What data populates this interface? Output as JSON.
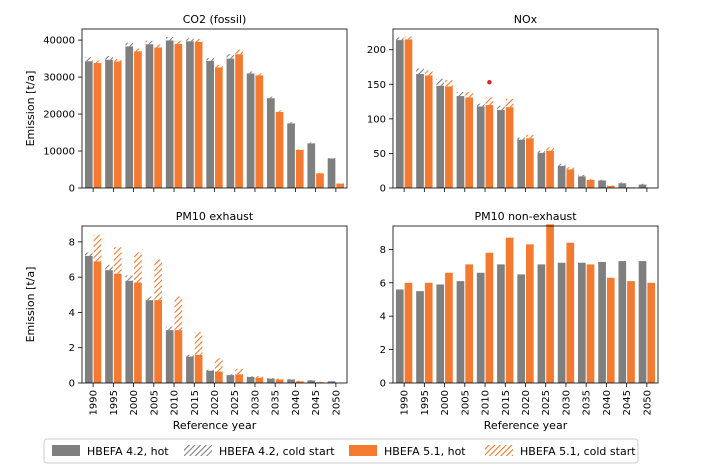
{
  "colors": {
    "hbefa42": "#7f7f7f",
    "hbefa51": "#f47a30",
    "outlier": "#d62728"
  },
  "legend": {
    "items": [
      {
        "label": "HBEFA 4.2, hot",
        "style": "solid-gray"
      },
      {
        "label": "HBEFA 4.2, cold start",
        "style": "hatch-gray"
      },
      {
        "label": "HBEFA 5.1, hot",
        "style": "solid-orange"
      },
      {
        "label": "HBEFA 5.1, cold start",
        "style": "hatch-orange"
      }
    ]
  },
  "chart_data": [
    {
      "type": "bar",
      "title": "CO2 (fossil)",
      "ylabel": "Emission [t/a]",
      "xlabel": "",
      "categories": [
        "1990",
        "1995",
        "2000",
        "2005",
        "2010",
        "2015",
        "2020",
        "2025",
        "2030",
        "2035",
        "2040",
        "2045",
        "2050"
      ],
      "ylim": [
        0,
        43000
      ],
      "yticks": [
        0,
        10000,
        20000,
        30000,
        40000
      ],
      "show_xticklabels": false,
      "series": [
        {
          "name": "HBEFA 4.2, hot",
          "values": [
            34300,
            34700,
            38300,
            38900,
            39900,
            39700,
            34400,
            35000,
            31000,
            24300,
            17500,
            12100,
            8000
          ]
        },
        {
          "name": "HBEFA 4.2, cold start",
          "values": [
            1100,
            1000,
            1000,
            900,
            900,
            800,
            700,
            1200,
            500,
            400,
            300,
            200,
            100
          ]
        },
        {
          "name": "HBEFA 5.1, hot",
          "values": [
            33800,
            34200,
            37000,
            38000,
            39000,
            39500,
            32600,
            36200,
            30500,
            20600,
            10300,
            4000,
            1200
          ]
        },
        {
          "name": "HBEFA 5.1, cold start",
          "values": [
            700,
            700,
            700,
            800,
            800,
            800,
            700,
            1200,
            500,
            400,
            200,
            100,
            50
          ]
        }
      ]
    },
    {
      "type": "bar",
      "title": "NOx",
      "ylabel": "",
      "xlabel": "",
      "categories": [
        "1990",
        "1995",
        "2000",
        "2005",
        "2010",
        "2015",
        "2020",
        "2025",
        "2030",
        "2035",
        "2040",
        "2045",
        "2050"
      ],
      "ylim": [
        0,
        230
      ],
      "yticks": [
        0,
        50,
        100,
        150,
        200
      ],
      "show_xticklabels": false,
      "series": [
        {
          "name": "HBEFA 4.2, hot",
          "values": [
            214,
            165,
            148,
            133,
            118,
            113,
            70,
            51,
            32,
            17,
            11,
            7,
            5
          ]
        },
        {
          "name": "HBEFA 4.2, cold start",
          "values": [
            4,
            8,
            10,
            6,
            4,
            6,
            3,
            3,
            3,
            2,
            1,
            1,
            1
          ]
        },
        {
          "name": "HBEFA 5.1, hot",
          "values": [
            215,
            163,
            147,
            131,
            120,
            117,
            72,
            54,
            27,
            12,
            3,
            1,
            0.5
          ]
        },
        {
          "name": "HBEFA 5.1, cold start",
          "values": [
            4,
            7,
            9,
            8,
            11,
            12,
            5,
            5,
            3,
            1,
            1,
            0.5,
            0.2
          ]
        }
      ],
      "annotations": [
        {
          "x": "2010",
          "y": 153,
          "marker": "dot"
        }
      ]
    },
    {
      "type": "bar",
      "title": "PM10 exhaust",
      "ylabel": "Emission [t/a]",
      "xlabel": "Reference year",
      "categories": [
        "1990",
        "1995",
        "2000",
        "2005",
        "2010",
        "2015",
        "2020",
        "2025",
        "2030",
        "2035",
        "2040",
        "2045",
        "2050"
      ],
      "ylim": [
        0,
        8.9
      ],
      "yticks": [
        0,
        2,
        4,
        6,
        8
      ],
      "show_xticklabels": true,
      "series": [
        {
          "name": "HBEFA 4.2, hot",
          "values": [
            7.2,
            6.4,
            5.8,
            4.7,
            3.0,
            1.5,
            0.7,
            0.45,
            0.35,
            0.25,
            0.2,
            0.15,
            0.1
          ]
        },
        {
          "name": "HBEFA 4.2, cold start",
          "values": [
            0.2,
            0.3,
            0.3,
            0.2,
            0.2,
            0.1,
            0.05,
            0.05,
            0.03,
            0.03,
            0.02,
            0.02,
            0.01
          ]
        },
        {
          "name": "HBEFA 5.1, hot",
          "values": [
            6.9,
            6.2,
            5.7,
            4.7,
            3.0,
            1.6,
            0.65,
            0.5,
            0.3,
            0.2,
            0.1,
            0.05,
            0.02
          ]
        },
        {
          "name": "HBEFA 5.1, cold start",
          "values": [
            1.5,
            1.5,
            1.7,
            2.3,
            1.9,
            1.3,
            0.75,
            0.3,
            0.1,
            0.05,
            0.03,
            0.02,
            0.01
          ]
        }
      ]
    },
    {
      "type": "bar",
      "title": "PM10 non-exhaust",
      "ylabel": "",
      "xlabel": "Reference year",
      "categories": [
        "1990",
        "1995",
        "2000",
        "2005",
        "2010",
        "2015",
        "2020",
        "2025",
        "2030",
        "2035",
        "2040",
        "2045",
        "2050"
      ],
      "ylim": [
        0,
        9.4
      ],
      "yticks": [
        0,
        2,
        4,
        6,
        8
      ],
      "show_xticklabels": true,
      "series": [
        {
          "name": "HBEFA 4.2, hot",
          "values": [
            5.6,
            5.5,
            5.9,
            6.1,
            6.6,
            7.1,
            6.5,
            7.1,
            7.2,
            7.2,
            7.25,
            7.3,
            7.3
          ]
        },
        {
          "name": "HBEFA 4.2, cold start",
          "values": [
            0,
            0,
            0,
            0,
            0,
            0,
            0,
            0,
            0,
            0,
            0,
            0,
            0
          ]
        },
        {
          "name": "HBEFA 5.1, hot",
          "values": [
            6.0,
            6.0,
            6.6,
            7.1,
            7.8,
            8.7,
            8.3,
            9.5,
            8.4,
            7.1,
            6.3,
            6.1,
            6.0
          ]
        },
        {
          "name": "HBEFA 5.1, cold start",
          "values": [
            0,
            0,
            0,
            0,
            0,
            0,
            0,
            0,
            0,
            0,
            0,
            0,
            0
          ]
        }
      ]
    }
  ]
}
